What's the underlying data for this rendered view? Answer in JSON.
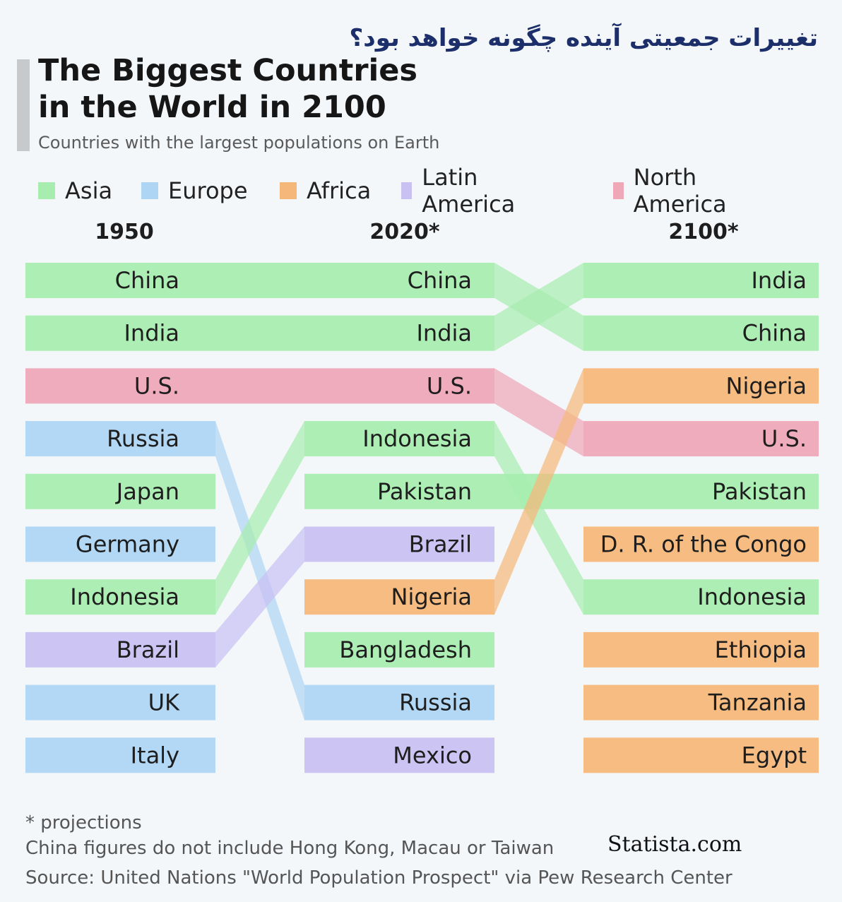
{
  "header": {
    "persian_title": "تغییرات جمعیتی آینده چگونه خواهد بود؟",
    "title_line1": "The Biggest Countries",
    "title_line2": "in the World in 2100",
    "subtitle": "Countries with the largest populations on Earth"
  },
  "legend": [
    {
      "name": "Asia",
      "color": "#a8edb0"
    },
    {
      "name": "Europe",
      "color": "#aed6f4"
    },
    {
      "name": "Africa",
      "color": "#f5b87a"
    },
    {
      "name": "Latin America",
      "color": "#c9c1f2"
    },
    {
      "name": "North America",
      "color": "#eea8b8"
    }
  ],
  "chart_data": {
    "type": "table",
    "columns": [
      "1950",
      "2020*",
      "2100*"
    ],
    "rankings": {
      "1950": [
        {
          "country": "China",
          "region": "Asia"
        },
        {
          "country": "India",
          "region": "Asia"
        },
        {
          "country": "U.S.",
          "region": "North America"
        },
        {
          "country": "Russia",
          "region": "Europe"
        },
        {
          "country": "Japan",
          "region": "Asia"
        },
        {
          "country": "Germany",
          "region": "Europe"
        },
        {
          "country": "Indonesia",
          "region": "Asia"
        },
        {
          "country": "Brazil",
          "region": "Latin America"
        },
        {
          "country": "UK",
          "region": "Europe"
        },
        {
          "country": "Italy",
          "region": "Europe"
        }
      ],
      "2020*": [
        {
          "country": "China",
          "region": "Asia"
        },
        {
          "country": "India",
          "region": "Asia"
        },
        {
          "country": "U.S.",
          "region": "North America"
        },
        {
          "country": "Indonesia",
          "region": "Asia"
        },
        {
          "country": "Pakistan",
          "region": "Asia"
        },
        {
          "country": "Brazil",
          "region": "Latin America"
        },
        {
          "country": "Nigeria",
          "region": "Africa"
        },
        {
          "country": "Bangladesh",
          "region": "Asia"
        },
        {
          "country": "Russia",
          "region": "Europe"
        },
        {
          "country": "Mexico",
          "region": "Latin America"
        }
      ],
      "2100*": [
        {
          "country": "India",
          "region": "Asia"
        },
        {
          "country": "China",
          "region": "Asia"
        },
        {
          "country": "Nigeria",
          "region": "Africa"
        },
        {
          "country": "U.S.",
          "region": "North America"
        },
        {
          "country": "Pakistan",
          "region": "Asia"
        },
        {
          "country": "D. R. of the Congo",
          "region": "Africa"
        },
        {
          "country": "Indonesia",
          "region": "Asia"
        },
        {
          "country": "Ethiopia",
          "region": "Africa"
        },
        {
          "country": "Tanzania",
          "region": "Africa"
        },
        {
          "country": "Egypt",
          "region": "Africa"
        }
      ]
    }
  },
  "footer": {
    "note1": "* projections",
    "note2": "China figures do not include Hong Kong, Macau or Taiwan",
    "source": "Source: United Nations \"World Population Prospect\" via Pew Research Center",
    "watermark": "Statista.com"
  }
}
